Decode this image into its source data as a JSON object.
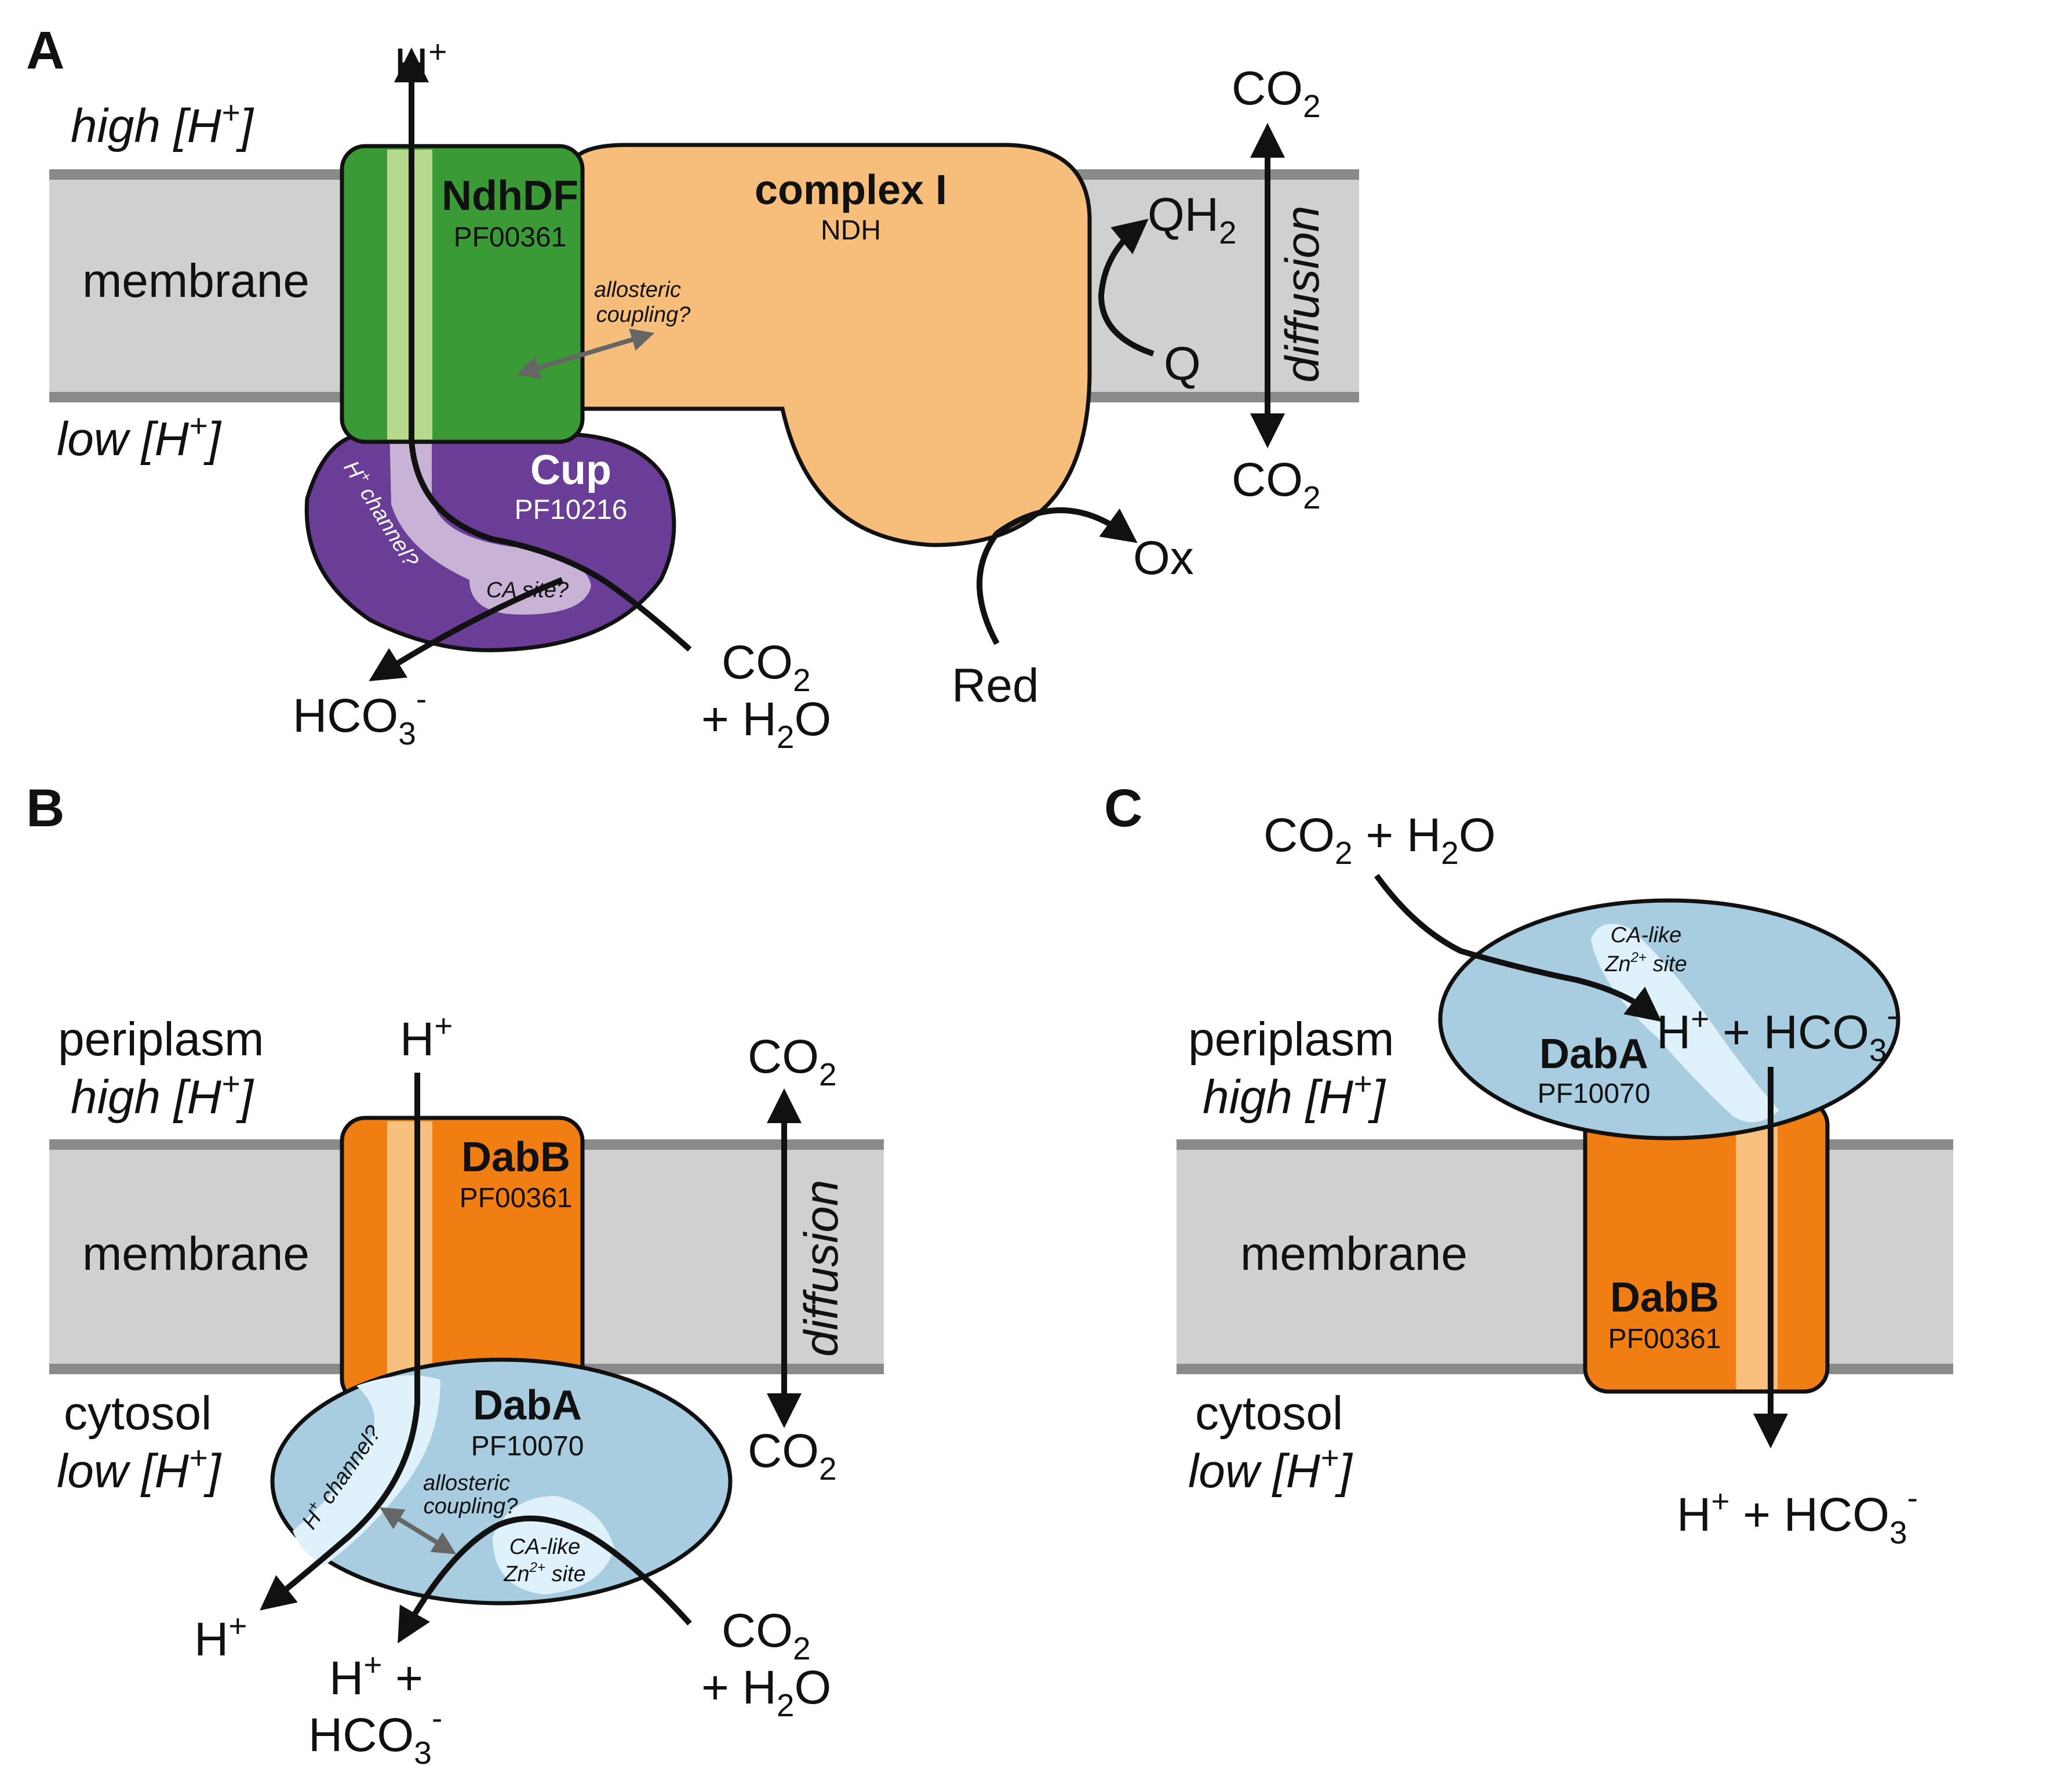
{
  "colors": {
    "membrane": "#d0d0d0",
    "membrane_edge": "#8a8a8a",
    "ndhdf": "#3a9a35",
    "ndhdf_channel": "#b6d98e",
    "complex_i": "#f6be7a",
    "cup": "#6a3d96",
    "cup_channel": "#c8b3d6",
    "dabb": "#f07e12",
    "dabb_channel": "#f8c07e",
    "daba": "#a8cce0",
    "daba_channel": "#dff2fb"
  },
  "panel_a": {
    "letter": "A",
    "high_h_text": "high [H",
    "low_h_text": "low [H",
    "sup_plus": "+",
    "close_bracket": "]",
    "membrane_label": "membrane",
    "ndhdf_name": "NdhDF",
    "ndhdf_pfam": "PF00361",
    "complex_name": "complex I",
    "complex_sub": "NDH",
    "cup_name": "Cup",
    "cup_pfam": "PF10216",
    "allosteric_line1": "allosteric",
    "allosteric_line2": "coupling?",
    "h_channel_text": "H",
    "h_channel_rest": " channel?",
    "ca_site": "CA site?",
    "h_top": "H",
    "qh": "QH",
    "qh_sub": "2",
    "q": "Q",
    "ox": "Ox",
    "red": "Red",
    "co2_top": "CO",
    "co2_bottom": "CO",
    "co2_sub": "2",
    "diffusion": "diffusion",
    "hco3": "HCO",
    "hco3_sub": "3",
    "minus": "-",
    "co2_react": "CO",
    "h2o_react": "+ H",
    "h2o_o": "O"
  },
  "panel_b": {
    "letter": "B",
    "periplasm": "periplasm",
    "high_h_text": "high [H",
    "cytosol": "cytosol",
    "low_h_text": "low [H",
    "membrane_label": "membrane",
    "dabb_name": "DabB",
    "dabb_pfam": "PF00361",
    "daba_name": "DabA",
    "daba_pfam": "PF10070",
    "h_channel_text": "H",
    "h_channel_rest": " channel?",
    "allosteric_line1": "allosteric",
    "allosteric_line2": "coupling?",
    "ca_like": "CA-like",
    "zn_site": "Zn",
    "zn_sup": "2+",
    "site": " site",
    "h_top": "H",
    "h_bottom": "H",
    "hplus_prod": "H",
    "plus_sign": " +",
    "hco3": "HCO",
    "co2_top": "CO",
    "co2_bottom": "CO",
    "diffusion": "diffusion",
    "co2_react": "CO",
    "h2o_react": "+ H",
    "h2o_o": "O"
  },
  "panel_c": {
    "letter": "C",
    "periplasm": "periplasm",
    "high_h_text": "high [H",
    "cytosol": "cytosol",
    "low_h_text": "low [H",
    "membrane_label": "membrane",
    "daba_name": "DabA",
    "daba_pfam": "PF10070",
    "dabb_name": "DabB",
    "dabb_pfam": "PF00361",
    "ca_like": "CA-like",
    "zn_site": "Zn",
    "zn_sup": "2+",
    "site": " site",
    "react_co2": "CO",
    "react_h2o": " + H",
    "react_o": "O",
    "prod_h": "H",
    "prod_rest": " + HCO",
    "bottom_h": "H",
    "bottom_rest": " + HCO"
  }
}
